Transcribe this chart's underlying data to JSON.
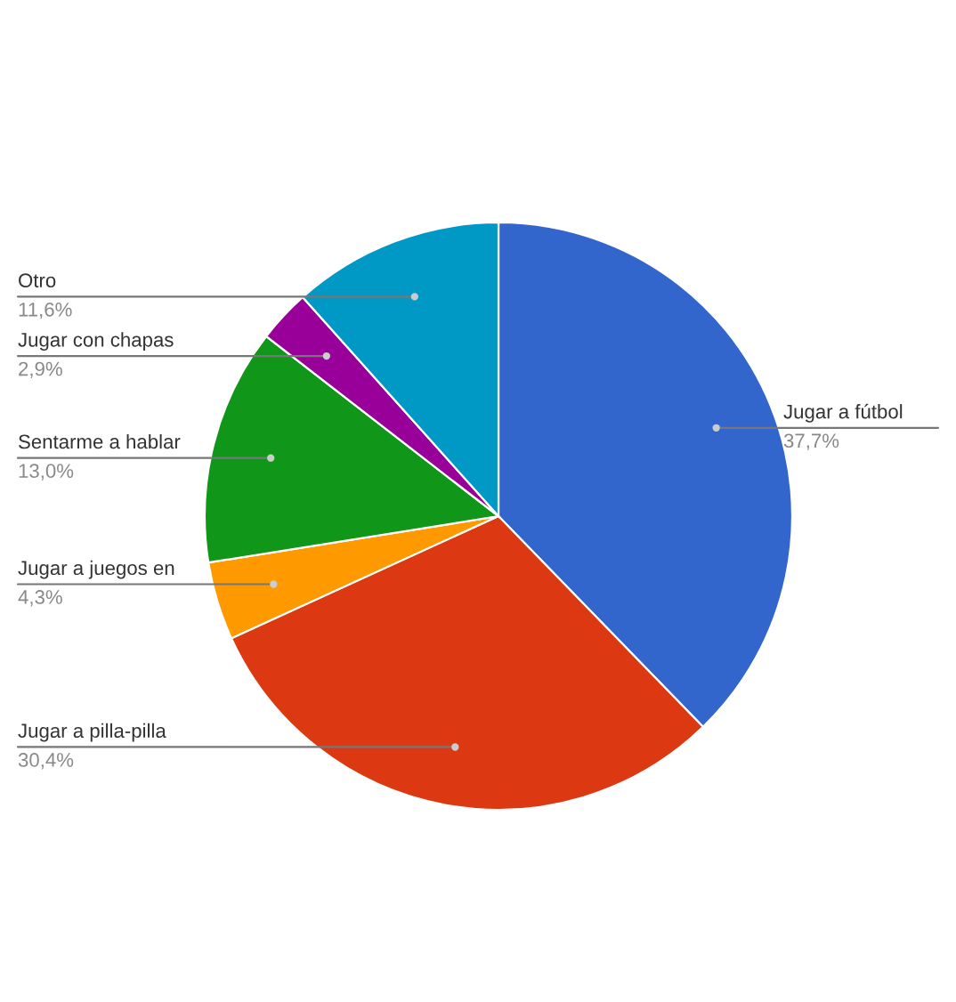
{
  "chart_data": {
    "type": "pie",
    "categories": [
      "Jugar a fútbol",
      "Jugar a pilla-pilla",
      "Jugar a juegos en",
      "Sentarme a hablar",
      "Jugar con chapas",
      "Otro"
    ],
    "values": [
      37.7,
      30.4,
      4.3,
      13.0,
      2.9,
      11.6
    ],
    "value_labels": [
      "37,7%",
      "30,4%",
      "4,3%",
      "13,0%",
      "2,9%",
      "11,6%"
    ],
    "colors": [
      "#3366cc",
      "#dc3912",
      "#ff9900",
      "#109618",
      "#990099",
      "#0099c6"
    ],
    "legend": false
  }
}
